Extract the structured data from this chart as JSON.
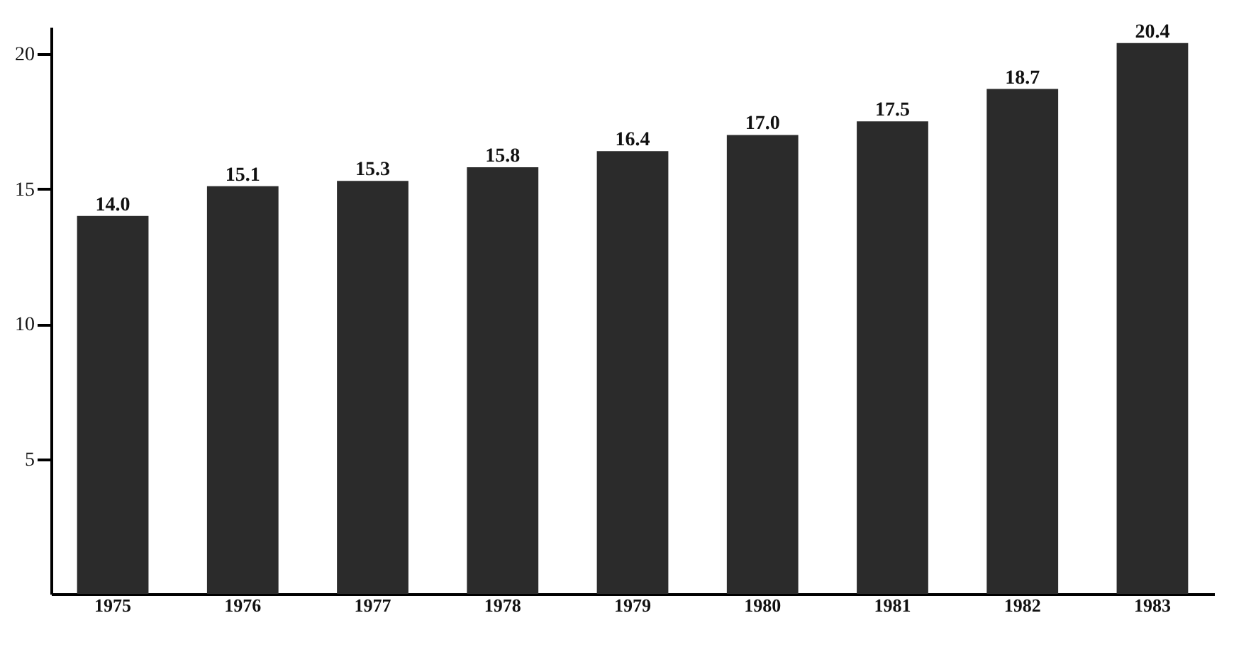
{
  "chart_data": {
    "type": "bar",
    "categories": [
      "1975",
      "1976",
      "1977",
      "1978",
      "1979",
      "1980",
      "1981",
      "1982",
      "1983"
    ],
    "values": [
      14.0,
      15.1,
      15.3,
      15.8,
      16.4,
      17.0,
      17.5,
      18.7,
      20.4
    ],
    "value_labels": [
      "14.0",
      "15.1",
      "15.3",
      "15.8",
      "16.4",
      "17.0",
      "17.5",
      "18.7",
      "20.4"
    ],
    "color": "#2b2b2b",
    "ylim": [
      0,
      21
    ],
    "yticks": [
      5,
      10,
      15,
      20
    ],
    "grid": false
  }
}
